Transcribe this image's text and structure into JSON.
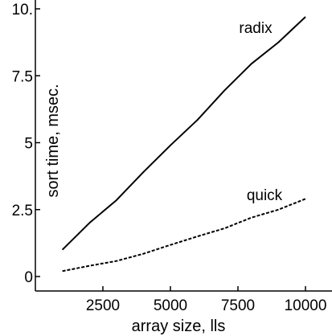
{
  "chart_data": {
    "type": "line",
    "title": "",
    "xlabel": "array size, lls",
    "ylabel": "sort time, msec.",
    "xlim": [
      0,
      10500
    ],
    "ylim": [
      0,
      10
    ],
    "xticks": [
      2500,
      5000,
      7500,
      10000
    ],
    "yticks": [
      0,
      2.5,
      5,
      7.5,
      10
    ],
    "xtick_labels": [
      "2500",
      "5000",
      "7500",
      "10000"
    ],
    "ytick_labels": [
      "0",
      "2.5",
      "5",
      "7.5",
      "10."
    ],
    "grid": false,
    "legend": "none",
    "series": [
      {
        "name": "radix",
        "style": "solid",
        "color": "#000000",
        "x": [
          1000,
          2000,
          3000,
          4000,
          5000,
          6000,
          7000,
          8000,
          9000,
          10000
        ],
        "y": [
          1.0,
          2.0,
          2.85,
          3.9,
          4.9,
          5.85,
          6.95,
          7.95,
          8.75,
          9.7
        ]
      },
      {
        "name": "quick",
        "style": "dashed",
        "color": "#000000",
        "x": [
          1000,
          2000,
          3000,
          4000,
          5000,
          6000,
          7000,
          8000,
          9000,
          10000
        ],
        "y": [
          0.2,
          0.4,
          0.58,
          0.85,
          1.18,
          1.5,
          1.8,
          2.2,
          2.5,
          2.9
        ]
      }
    ]
  }
}
